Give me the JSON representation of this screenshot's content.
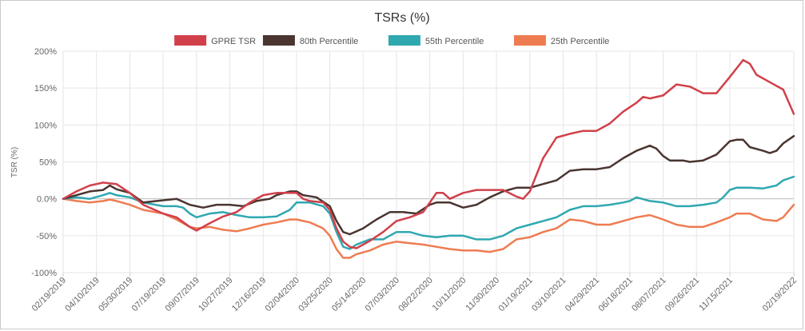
{
  "chart_data": {
    "type": "line",
    "title": "TSRs (%)",
    "xlabel": "",
    "ylabel": "TSR (%)",
    "ylim": [
      -100,
      200
    ],
    "ytick_values": [
      -100,
      -50,
      0,
      50,
      100,
      150,
      200
    ],
    "yticks": [
      "-100%",
      "-50%",
      "0.0%",
      "50%",
      "100%",
      "150%",
      "200%"
    ],
    "x_ticks": [
      "02/19/2019",
      "04/10/2019",
      "05/30/2019",
      "07/19/2019",
      "09/07/2019",
      "10/27/2019",
      "12/16/2019",
      "02/04/2020",
      "03/25/2020",
      "05/14/2020",
      "07/03/2020",
      "08/22/2020",
      "10/11/2020",
      "11/30/2020",
      "01/19/2021",
      "03/10/2021",
      "04/29/2021",
      "06/18/2021",
      "08/07/2021",
      "09/26/2021",
      "11/15/2021",
      "02/19/2022"
    ],
    "x_tick_index": [
      0,
      50,
      100,
      150,
      200,
      250,
      300,
      350,
      400,
      450,
      500,
      550,
      600,
      650,
      700,
      750,
      800,
      850,
      900,
      950,
      1000,
      1096
    ],
    "x_max": 1096,
    "legend_position": "top",
    "series": [
      {
        "name": "GPRE TSR",
        "color": "#d1404a",
        "points": [
          [
            0,
            0
          ],
          [
            20,
            10
          ],
          [
            40,
            18
          ],
          [
            60,
            22
          ],
          [
            80,
            20
          ],
          [
            100,
            8
          ],
          [
            120,
            -8
          ],
          [
            150,
            -20
          ],
          [
            170,
            -25
          ],
          [
            190,
            -38
          ],
          [
            200,
            -43
          ],
          [
            220,
            -33
          ],
          [
            240,
            -24
          ],
          [
            260,
            -18
          ],
          [
            280,
            -5
          ],
          [
            300,
            5
          ],
          [
            320,
            8
          ],
          [
            350,
            8
          ],
          [
            360,
            0
          ],
          [
            370,
            -3
          ],
          [
            390,
            -5
          ],
          [
            400,
            -15
          ],
          [
            410,
            -40
          ],
          [
            420,
            -58
          ],
          [
            430,
            -65
          ],
          [
            440,
            -67
          ],
          [
            460,
            -57
          ],
          [
            480,
            -45
          ],
          [
            500,
            -30
          ],
          [
            520,
            -25
          ],
          [
            540,
            -18
          ],
          [
            550,
            -5
          ],
          [
            560,
            8
          ],
          [
            570,
            8
          ],
          [
            580,
            0
          ],
          [
            600,
            8
          ],
          [
            620,
            12
          ],
          [
            640,
            12
          ],
          [
            660,
            12
          ],
          [
            680,
            3
          ],
          [
            690,
            0
          ],
          [
            700,
            10
          ],
          [
            720,
            55
          ],
          [
            740,
            83
          ],
          [
            760,
            88
          ],
          [
            780,
            92
          ],
          [
            800,
            92
          ],
          [
            820,
            102
          ],
          [
            840,
            118
          ],
          [
            860,
            130
          ],
          [
            870,
            138
          ],
          [
            880,
            136
          ],
          [
            900,
            140
          ],
          [
            920,
            155
          ],
          [
            940,
            152
          ],
          [
            960,
            143
          ],
          [
            980,
            143
          ],
          [
            1000,
            165
          ],
          [
            1020,
            188
          ],
          [
            1030,
            183
          ],
          [
            1040,
            168
          ],
          [
            1060,
            158
          ],
          [
            1080,
            148
          ],
          [
            1096,
            115
          ]
        ]
      },
      {
        "name": "80th Percentile",
        "color": "#4a3530",
        "points": [
          [
            0,
            0
          ],
          [
            20,
            5
          ],
          [
            40,
            10
          ],
          [
            60,
            12
          ],
          [
            70,
            18
          ],
          [
            80,
            13
          ],
          [
            100,
            8
          ],
          [
            120,
            -5
          ],
          [
            150,
            -2
          ],
          [
            170,
            0
          ],
          [
            190,
            -8
          ],
          [
            210,
            -12
          ],
          [
            230,
            -8
          ],
          [
            250,
            -8
          ],
          [
            270,
            -10
          ],
          [
            290,
            -3
          ],
          [
            310,
            0
          ],
          [
            320,
            5
          ],
          [
            340,
            10
          ],
          [
            350,
            10
          ],
          [
            360,
            5
          ],
          [
            380,
            2
          ],
          [
            400,
            -10
          ],
          [
            410,
            -30
          ],
          [
            420,
            -45
          ],
          [
            430,
            -48
          ],
          [
            450,
            -40
          ],
          [
            470,
            -28
          ],
          [
            490,
            -18
          ],
          [
            510,
            -18
          ],
          [
            530,
            -20
          ],
          [
            550,
            -8
          ],
          [
            560,
            -5
          ],
          [
            580,
            -5
          ],
          [
            600,
            -12
          ],
          [
            620,
            -8
          ],
          [
            640,
            2
          ],
          [
            660,
            10
          ],
          [
            680,
            15
          ],
          [
            700,
            15
          ],
          [
            720,
            20
          ],
          [
            740,
            25
          ],
          [
            760,
            38
          ],
          [
            780,
            40
          ],
          [
            800,
            40
          ],
          [
            820,
            43
          ],
          [
            840,
            55
          ],
          [
            860,
            65
          ],
          [
            880,
            72
          ],
          [
            890,
            68
          ],
          [
            900,
            58
          ],
          [
            910,
            52
          ],
          [
            920,
            52
          ],
          [
            930,
            52
          ],
          [
            940,
            50
          ],
          [
            960,
            52
          ],
          [
            980,
            60
          ],
          [
            1000,
            78
          ],
          [
            1010,
            80
          ],
          [
            1020,
            80
          ],
          [
            1030,
            70
          ],
          [
            1050,
            65
          ],
          [
            1060,
            62
          ],
          [
            1070,
            65
          ],
          [
            1080,
            75
          ],
          [
            1096,
            85
          ]
        ]
      },
      {
        "name": "55th Percentile",
        "color": "#2fa8b0",
        "points": [
          [
            0,
            0
          ],
          [
            20,
            2
          ],
          [
            40,
            0
          ],
          [
            60,
            5
          ],
          [
            70,
            8
          ],
          [
            80,
            5
          ],
          [
            100,
            2
          ],
          [
            120,
            -5
          ],
          [
            150,
            -10
          ],
          [
            170,
            -10
          ],
          [
            180,
            -12
          ],
          [
            190,
            -20
          ],
          [
            200,
            -25
          ],
          [
            220,
            -20
          ],
          [
            240,
            -18
          ],
          [
            260,
            -22
          ],
          [
            280,
            -25
          ],
          [
            300,
            -25
          ],
          [
            320,
            -24
          ],
          [
            340,
            -15
          ],
          [
            350,
            -5
          ],
          [
            370,
            -5
          ],
          [
            390,
            -10
          ],
          [
            400,
            -20
          ],
          [
            410,
            -45
          ],
          [
            420,
            -65
          ],
          [
            430,
            -68
          ],
          [
            440,
            -62
          ],
          [
            460,
            -55
          ],
          [
            480,
            -55
          ],
          [
            500,
            -45
          ],
          [
            520,
            -45
          ],
          [
            540,
            -50
          ],
          [
            560,
            -52
          ],
          [
            580,
            -50
          ],
          [
            600,
            -50
          ],
          [
            620,
            -55
          ],
          [
            640,
            -55
          ],
          [
            660,
            -50
          ],
          [
            680,
            -40
          ],
          [
            700,
            -35
          ],
          [
            720,
            -30
          ],
          [
            740,
            -25
          ],
          [
            760,
            -15
          ],
          [
            780,
            -10
          ],
          [
            800,
            -10
          ],
          [
            820,
            -8
          ],
          [
            840,
            -5
          ],
          [
            850,
            -3
          ],
          [
            860,
            2
          ],
          [
            880,
            -3
          ],
          [
            900,
            -5
          ],
          [
            920,
            -10
          ],
          [
            940,
            -10
          ],
          [
            960,
            -8
          ],
          [
            980,
            -5
          ],
          [
            990,
            2
          ],
          [
            1000,
            12
          ],
          [
            1010,
            15
          ],
          [
            1030,
            15
          ],
          [
            1050,
            14
          ],
          [
            1070,
            18
          ],
          [
            1080,
            25
          ],
          [
            1096,
            30
          ]
        ]
      },
      {
        "name": "25th Percentile",
        "color": "#ee7c51",
        "points": [
          [
            0,
            0
          ],
          [
            20,
            -3
          ],
          [
            40,
            -5
          ],
          [
            60,
            -3
          ],
          [
            70,
            -1
          ],
          [
            80,
            -3
          ],
          [
            100,
            -8
          ],
          [
            120,
            -15
          ],
          [
            150,
            -20
          ],
          [
            170,
            -28
          ],
          [
            190,
            -38
          ],
          [
            200,
            -40
          ],
          [
            220,
            -38
          ],
          [
            240,
            -42
          ],
          [
            260,
            -44
          ],
          [
            280,
            -40
          ],
          [
            300,
            -35
          ],
          [
            320,
            -32
          ],
          [
            340,
            -28
          ],
          [
            350,
            -28
          ],
          [
            370,
            -32
          ],
          [
            390,
            -40
          ],
          [
            400,
            -50
          ],
          [
            410,
            -68
          ],
          [
            420,
            -80
          ],
          [
            430,
            -80
          ],
          [
            440,
            -75
          ],
          [
            460,
            -70
          ],
          [
            480,
            -62
          ],
          [
            500,
            -58
          ],
          [
            520,
            -60
          ],
          [
            540,
            -62
          ],
          [
            560,
            -65
          ],
          [
            580,
            -68
          ],
          [
            600,
            -70
          ],
          [
            620,
            -70
          ],
          [
            640,
            -72
          ],
          [
            660,
            -68
          ],
          [
            680,
            -55
          ],
          [
            700,
            -52
          ],
          [
            720,
            -45
          ],
          [
            740,
            -40
          ],
          [
            760,
            -28
          ],
          [
            780,
            -30
          ],
          [
            800,
            -35
          ],
          [
            820,
            -35
          ],
          [
            840,
            -30
          ],
          [
            860,
            -25
          ],
          [
            880,
            -22
          ],
          [
            900,
            -28
          ],
          [
            920,
            -35
          ],
          [
            940,
            -38
          ],
          [
            960,
            -38
          ],
          [
            980,
            -32
          ],
          [
            1000,
            -25
          ],
          [
            1010,
            -20
          ],
          [
            1030,
            -20
          ],
          [
            1050,
            -28
          ],
          [
            1070,
            -30
          ],
          [
            1080,
            -25
          ],
          [
            1096,
            -8
          ]
        ]
      }
    ]
  }
}
